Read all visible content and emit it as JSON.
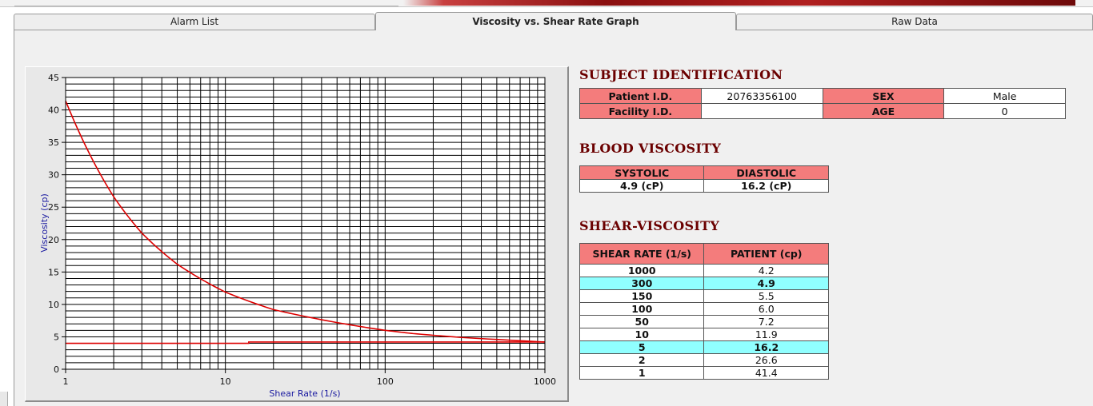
{
  "tabs": [
    {
      "label": "Alarm List",
      "active": false
    },
    {
      "label": "Viscosity vs. Shear Rate Graph",
      "active": true
    },
    {
      "label": "Raw Data",
      "active": false
    }
  ],
  "subject": {
    "title": "SUBJECT IDENTIFICATION",
    "patient_id_label": "Patient I.D.",
    "patient_id_value": "20763356100",
    "sex_label": "SEX",
    "sex_value": "Male",
    "facility_id_label": "Facility I.D.",
    "facility_id_value": "",
    "age_label": "AGE",
    "age_value": "0"
  },
  "blood_viscosity": {
    "title": "BLOOD VISCOSITY",
    "systolic_label": "SYSTOLIC",
    "diastolic_label": "DIASTOLIC",
    "systolic_value": "4.9 (cP)",
    "diastolic_value": "16.2 (cP)"
  },
  "shear_viscosity": {
    "title": "SHEAR-VISCOSITY",
    "col_shear": "SHEAR RATE (1/s)",
    "col_patient": "PATIENT (cp)",
    "rows": [
      {
        "shear": "1000",
        "patient": "4.2",
        "highlight": false
      },
      {
        "shear": "300",
        "patient": "4.9",
        "highlight": true
      },
      {
        "shear": "150",
        "patient": "5.5",
        "highlight": false
      },
      {
        "shear": "100",
        "patient": "6.0",
        "highlight": false
      },
      {
        "shear": "50",
        "patient": "7.2",
        "highlight": false
      },
      {
        "shear": "10",
        "patient": "11.9",
        "highlight": false
      },
      {
        "shear": "5",
        "patient": "16.2",
        "highlight": true
      },
      {
        "shear": "2",
        "patient": "26.6",
        "highlight": false
      },
      {
        "shear": "1",
        "patient": "41.4",
        "highlight": false
      }
    ]
  },
  "colors": {
    "header_cell": "#f47c7c",
    "highlight_row": "#90ffff",
    "section_title": "#6b0000",
    "curve": "#dd0000"
  },
  "chart_data": {
    "type": "line",
    "xlabel": "Shear Rate (1/s)",
    "ylabel": "Viscosity (cp)",
    "x_scale": "log",
    "xlim": [
      1,
      1000
    ],
    "ylim": [
      0,
      45
    ],
    "x_ticks": [
      "1",
      "10",
      "100",
      "1000"
    ],
    "y_ticks": [
      "0",
      "5",
      "10",
      "15",
      "20",
      "25",
      "30",
      "35",
      "40",
      "45"
    ],
    "grid": true,
    "series": [
      {
        "x": [
          1,
          2,
          3,
          5,
          10,
          20,
          50,
          100,
          150,
          300,
          1000
        ],
        "y": [
          41.4,
          26.6,
          21.0,
          16.2,
          11.9,
          9.2,
          7.2,
          6.0,
          5.5,
          4.9,
          4.2
        ]
      },
      {
        "x": [
          1,
          14,
          14,
          1000
        ],
        "y": [
          4.0,
          4.0,
          4.2,
          4.2
        ]
      }
    ]
  }
}
